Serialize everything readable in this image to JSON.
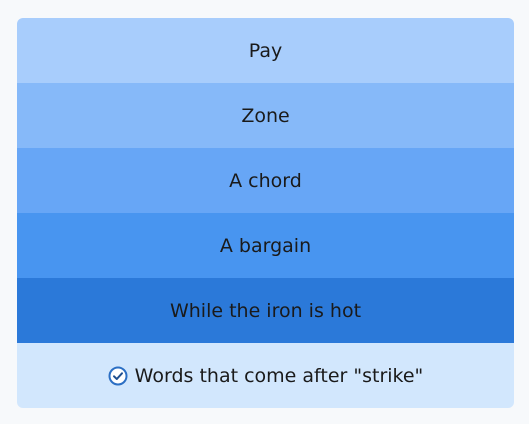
{
  "rows": [
    {
      "label": "Pay",
      "color": "#a8cdfc"
    },
    {
      "label": "Zone",
      "color": "#86b9f9"
    },
    {
      "label": "A chord",
      "color": "#67a6f6"
    },
    {
      "label": "A bargain",
      "color": "#4895f0"
    },
    {
      "label": "While the iron is hot",
      "color": "#2b79d9"
    }
  ],
  "footer": {
    "text": "Words that come after \"strike\"",
    "icon": "check-circle-icon",
    "background": "#d2e7fd"
  }
}
